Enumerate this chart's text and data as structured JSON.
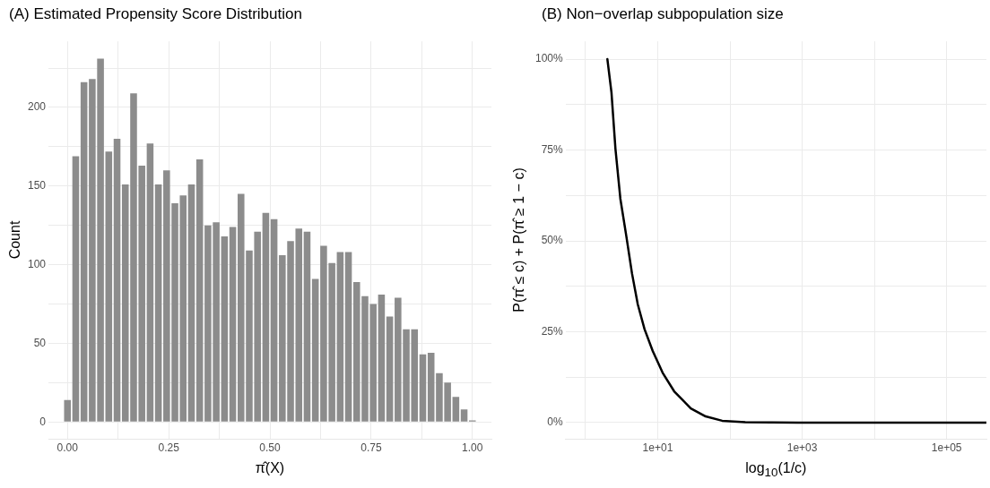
{
  "chart_data": [
    {
      "type": "histogram",
      "title": "(A) Estimated Propensity Score Distribution",
      "xlabel": "π̂(X)",
      "ylabel": "Count",
      "color": "#8c8c8c",
      "bins": [
        -0.0102,
        0.0102,
        0.0306,
        0.051,
        0.0714,
        0.0918,
        0.1122,
        0.1327,
        0.1531,
        0.1735,
        0.1939,
        0.2143,
        0.2347,
        0.2551,
        0.2755,
        0.2959,
        0.3163,
        0.3367,
        0.3571,
        0.3776,
        0.398,
        0.4184,
        0.4388,
        0.4592,
        0.4796,
        0.5,
        0.5204,
        0.5408,
        0.5612,
        0.5816,
        0.602,
        0.6224,
        0.6429,
        0.6633,
        0.6837,
        0.7041,
        0.7245,
        0.7449,
        0.7653,
        0.7857,
        0.8061,
        0.8265,
        0.8469,
        0.8673,
        0.8878,
        0.9082,
        0.9286,
        0.949,
        0.9694,
        0.9898,
        1.0102
      ],
      "values": [
        14,
        169,
        216,
        218,
        231,
        172,
        180,
        151,
        209,
        163,
        177,
        151,
        160,
        139,
        144,
        151,
        167,
        125,
        127,
        118,
        124,
        145,
        109,
        121,
        133,
        129,
        106,
        115,
        123,
        121,
        91,
        112,
        101,
        108,
        108,
        89,
        80,
        75,
        81,
        67,
        79,
        59,
        59,
        43,
        44,
        31,
        25,
        16,
        8,
        1
      ],
      "xlim": [
        -0.047,
        1.047
      ],
      "ylim": [
        -11,
        242
      ],
      "xticks": [
        {
          "value": 0,
          "label": "0.00"
        },
        {
          "value": 0.125,
          "label": null
        },
        {
          "value": 0.25,
          "label": "0.25"
        },
        {
          "value": 0.375,
          "label": null
        },
        {
          "value": 0.5,
          "label": "0.50"
        },
        {
          "value": 0.625,
          "label": null
        },
        {
          "value": 0.75,
          "label": "0.75"
        },
        {
          "value": 0.875,
          "label": null
        },
        {
          "value": 1,
          "label": "1.00"
        }
      ],
      "yticks": [
        0,
        {
          "value": 25,
          "label": null
        },
        50,
        {
          "value": 75,
          "label": null
        },
        100,
        {
          "value": 125,
          "label": null
        },
        150,
        {
          "value": 175,
          "label": null
        },
        200,
        {
          "value": 225,
          "label": null
        }
      ],
      "grid": true,
      "legend": false
    },
    {
      "type": "line",
      "title": "(B) Non−overlap subpopulation size",
      "xlabel": "log$_{10}$(1/c)",
      "ylabel": "P(π̂ ≤ c) + P(π̂ ≥ 1 − c)",
      "log": "x",
      "series": [
        {
          "color": "#000000",
          "x": [
            2.01,
            2.29,
            2.6,
            3.04,
            3.67,
            4.4,
            5.3,
            6.57,
            8.53,
            11.7,
            16.9,
            28.7,
            46.1,
            78,
            163,
            881,
            350000
          ],
          "values": [
            100,
            90.8,
            75.3,
            61.6,
            51.4,
            41.1,
            32.5,
            25.7,
            19.7,
            13.7,
            8.6,
            3.9,
            1.7,
            0.5,
            0.1,
            0,
            0
          ]
        }
      ],
      "xlim": [
        0.53,
        355000
      ],
      "ylim": [
        -4.6,
        104.9
      ],
      "xticks": [
        {
          "value": 1,
          "label": null
        },
        {
          "value": 10,
          "label": "1e+01"
        },
        {
          "value": 100,
          "label": null
        },
        {
          "value": 1000,
          "label": "1e+03"
        },
        {
          "value": 10000,
          "label": null
        },
        {
          "value": 100000,
          "label": "1e+05"
        }
      ],
      "yticks": [
        {
          "value": 0,
          "label": "0%"
        },
        {
          "value": 12.5,
          "label": null
        },
        {
          "value": 25,
          "label": "25%"
        },
        {
          "value": 37.5,
          "label": null
        },
        {
          "value": 50,
          "label": "50%"
        },
        {
          "value": 62.5,
          "label": null
        },
        {
          "value": 75,
          "label": "75%"
        },
        {
          "value": 87.5,
          "label": null
        },
        {
          "value": 100,
          "label": "100%"
        }
      ],
      "grid": true,
      "legend": false,
      "marker": "none",
      "line_style": "solid"
    }
  ]
}
